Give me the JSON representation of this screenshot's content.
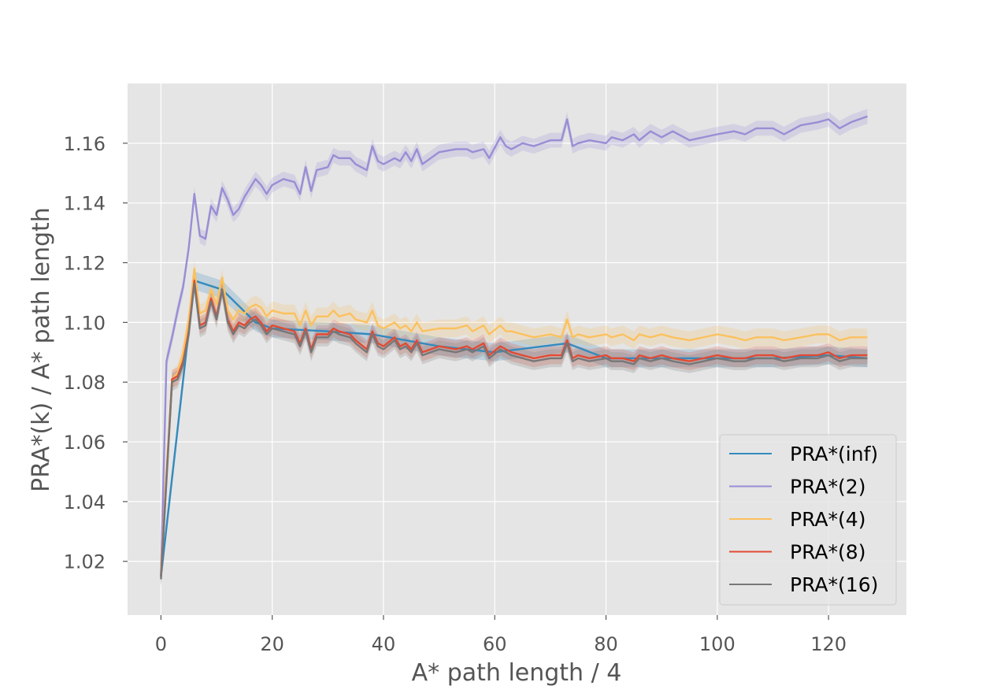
{
  "chart_data": {
    "type": "line",
    "title": "",
    "xlabel": "A* path length / 4",
    "ylabel": "PRA*(k) / A* path length",
    "xlim": [
      -6,
      134
    ],
    "ylim": [
      1.002,
      1.18
    ],
    "xticks": [
      0,
      20,
      40,
      60,
      80,
      100,
      120
    ],
    "yticks": [
      1.02,
      1.04,
      1.06,
      1.08,
      1.1,
      1.12,
      1.14,
      1.16
    ],
    "grid": true,
    "style": "ggplot",
    "legend_position": "lower-right",
    "band_description": "shaded confidence band around each series",
    "colors": {
      "background": "#E5E5E5",
      "grid": "#FFFFFF",
      "inf": "#348ABD",
      "k2": "#988ED5",
      "k4": "#FBC15E",
      "k8": "#E24A33",
      "k16": "#777777"
    },
    "series": [
      {
        "name": "PRA*(inf)",
        "color": "#348ABD",
        "x": [
          0,
          6,
          11,
          17,
          20,
          30,
          38,
          50,
          60,
          73,
          80,
          90,
          100,
          110,
          120,
          127
        ],
        "values": [
          1.015,
          1.114,
          1.111,
          1.1,
          1.098,
          1.097,
          1.096,
          1.092,
          1.09,
          1.093,
          1.088,
          1.088,
          1.088,
          1.088,
          1.089,
          1.088
        ],
        "band": 0.003
      },
      {
        "name": "PRA*(2)",
        "color": "#988ED5",
        "x": [
          0,
          1,
          2,
          3,
          4,
          5,
          6,
          7,
          8,
          9,
          10,
          11,
          12,
          13,
          14,
          15,
          16,
          17,
          18,
          19,
          20,
          22,
          24,
          25,
          26,
          27,
          28,
          30,
          31,
          32,
          34,
          35,
          37,
          38,
          39,
          40,
          42,
          43,
          44,
          45,
          46,
          47,
          50,
          53,
          55,
          56,
          58,
          59,
          61,
          62,
          63,
          65,
          67,
          70,
          72,
          73,
          74,
          75,
          77,
          80,
          81,
          83,
          85,
          86,
          88,
          90,
          92,
          95,
          100,
          103,
          105,
          107,
          110,
          112,
          115,
          118,
          120,
          122,
          124,
          127
        ],
        "values": [
          1.015,
          1.087,
          1.095,
          1.104,
          1.112,
          1.125,
          1.143,
          1.129,
          1.128,
          1.139,
          1.136,
          1.145,
          1.141,
          1.136,
          1.138,
          1.142,
          1.145,
          1.148,
          1.146,
          1.143,
          1.146,
          1.148,
          1.147,
          1.143,
          1.152,
          1.144,
          1.151,
          1.152,
          1.156,
          1.155,
          1.155,
          1.153,
          1.151,
          1.159,
          1.154,
          1.153,
          1.155,
          1.154,
          1.157,
          1.154,
          1.158,
          1.153,
          1.157,
          1.158,
          1.158,
          1.157,
          1.158,
          1.155,
          1.162,
          1.159,
          1.158,
          1.16,
          1.159,
          1.161,
          1.161,
          1.168,
          1.159,
          1.16,
          1.161,
          1.16,
          1.162,
          1.161,
          1.163,
          1.161,
          1.164,
          1.162,
          1.164,
          1.161,
          1.163,
          1.164,
          1.163,
          1.165,
          1.165,
          1.163,
          1.166,
          1.167,
          1.168,
          1.165,
          1.167,
          1.169
        ],
        "band": 0.0025
      },
      {
        "name": "PRA*(4)",
        "color": "#FBC15E",
        "x": [
          0,
          1,
          2,
          3,
          4,
          5,
          6,
          7,
          8,
          9,
          10,
          11,
          12,
          13,
          14,
          15,
          16,
          17,
          18,
          19,
          20,
          22,
          24,
          25,
          26,
          27,
          28,
          30,
          31,
          32,
          34,
          35,
          37,
          38,
          39,
          40,
          42,
          43,
          44,
          45,
          46,
          47,
          50,
          53,
          55,
          56,
          58,
          59,
          61,
          62,
          63,
          65,
          67,
          70,
          72,
          73,
          74,
          75,
          77,
          80,
          81,
          83,
          85,
          86,
          88,
          90,
          92,
          95,
          100,
          103,
          105,
          107,
          110,
          112,
          115,
          118,
          120,
          122,
          124,
          127
        ],
        "values": [
          1.016,
          1.05,
          1.081,
          1.083,
          1.09,
          1.101,
          1.118,
          1.103,
          1.104,
          1.111,
          1.106,
          1.115,
          1.104,
          1.101,
          1.104,
          1.103,
          1.105,
          1.106,
          1.105,
          1.102,
          1.104,
          1.103,
          1.103,
          1.099,
          1.104,
          1.099,
          1.102,
          1.102,
          1.104,
          1.102,
          1.103,
          1.101,
          1.1,
          1.104,
          1.099,
          1.098,
          1.1,
          1.098,
          1.099,
          1.097,
          1.1,
          1.097,
          1.098,
          1.098,
          1.099,
          1.097,
          1.099,
          1.096,
          1.099,
          1.097,
          1.097,
          1.096,
          1.095,
          1.096,
          1.095,
          1.101,
          1.095,
          1.096,
          1.095,
          1.096,
          1.095,
          1.096,
          1.094,
          1.096,
          1.095,
          1.096,
          1.095,
          1.094,
          1.096,
          1.095,
          1.094,
          1.095,
          1.095,
          1.094,
          1.095,
          1.096,
          1.096,
          1.094,
          1.095,
          1.095
        ],
        "band": 0.003
      },
      {
        "name": "PRA*(8)",
        "color": "#E24A33",
        "x": [
          0,
          1,
          2,
          3,
          4,
          5,
          6,
          7,
          8,
          9,
          10,
          11,
          12,
          13,
          14,
          15,
          16,
          17,
          18,
          19,
          20,
          22,
          24,
          25,
          26,
          27,
          28,
          30,
          31,
          32,
          34,
          35,
          37,
          38,
          39,
          40,
          42,
          43,
          44,
          45,
          46,
          47,
          50,
          53,
          55,
          56,
          58,
          59,
          61,
          62,
          63,
          65,
          67,
          70,
          72,
          73,
          74,
          75,
          77,
          80,
          81,
          83,
          85,
          86,
          88,
          90,
          92,
          95,
          100,
          103,
          105,
          107,
          110,
          112,
          115,
          118,
          120,
          122,
          124,
          127
        ],
        "values": [
          1.015,
          1.048,
          1.081,
          1.082,
          1.087,
          1.097,
          1.114,
          1.099,
          1.1,
          1.108,
          1.102,
          1.111,
          1.101,
          1.097,
          1.1,
          1.099,
          1.101,
          1.102,
          1.1,
          1.097,
          1.099,
          1.098,
          1.097,
          1.093,
          1.098,
          1.091,
          1.096,
          1.096,
          1.098,
          1.097,
          1.096,
          1.094,
          1.091,
          1.097,
          1.093,
          1.092,
          1.095,
          1.092,
          1.093,
          1.091,
          1.094,
          1.09,
          1.092,
          1.091,
          1.092,
          1.091,
          1.093,
          1.089,
          1.092,
          1.091,
          1.09,
          1.089,
          1.088,
          1.089,
          1.089,
          1.094,
          1.088,
          1.089,
          1.088,
          1.089,
          1.088,
          1.088,
          1.087,
          1.089,
          1.088,
          1.089,
          1.088,
          1.087,
          1.089,
          1.088,
          1.088,
          1.089,
          1.089,
          1.088,
          1.089,
          1.089,
          1.09,
          1.088,
          1.089,
          1.089
        ],
        "band": 0.003
      },
      {
        "name": "PRA*(16)",
        "color": "#777777",
        "x": [
          0,
          1,
          2,
          3,
          4,
          5,
          6,
          7,
          8,
          9,
          10,
          11,
          12,
          13,
          14,
          15,
          16,
          17,
          18,
          19,
          20,
          22,
          24,
          25,
          26,
          27,
          28,
          30,
          31,
          32,
          34,
          35,
          37,
          38,
          39,
          40,
          42,
          43,
          44,
          45,
          46,
          47,
          50,
          53,
          55,
          56,
          58,
          59,
          61,
          62,
          63,
          65,
          67,
          70,
          72,
          73,
          74,
          75,
          77,
          80,
          81,
          83,
          85,
          86,
          88,
          90,
          92,
          95,
          100,
          103,
          105,
          107,
          110,
          112,
          115,
          118,
          120,
          122,
          124,
          127
        ],
        "values": [
          1.014,
          1.047,
          1.08,
          1.081,
          1.086,
          1.096,
          1.113,
          1.098,
          1.099,
          1.107,
          1.101,
          1.111,
          1.1,
          1.096,
          1.099,
          1.098,
          1.1,
          1.101,
          1.099,
          1.096,
          1.098,
          1.097,
          1.096,
          1.092,
          1.097,
          1.09,
          1.095,
          1.095,
          1.097,
          1.096,
          1.095,
          1.093,
          1.09,
          1.096,
          1.092,
          1.091,
          1.094,
          1.091,
          1.092,
          1.09,
          1.093,
          1.089,
          1.091,
          1.09,
          1.091,
          1.09,
          1.092,
          1.088,
          1.091,
          1.09,
          1.089,
          1.088,
          1.087,
          1.088,
          1.088,
          1.093,
          1.087,
          1.088,
          1.087,
          1.088,
          1.087,
          1.087,
          1.086,
          1.088,
          1.087,
          1.088,
          1.087,
          1.086,
          1.088,
          1.087,
          1.087,
          1.088,
          1.088,
          1.087,
          1.088,
          1.088,
          1.089,
          1.087,
          1.088,
          1.088
        ],
        "band": 0.003
      }
    ]
  }
}
